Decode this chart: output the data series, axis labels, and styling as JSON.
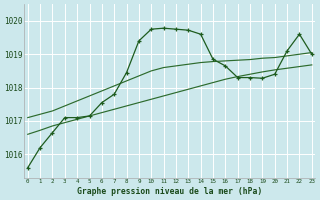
{
  "hours": [
    0,
    1,
    2,
    3,
    4,
    5,
    6,
    7,
    8,
    9,
    10,
    11,
    12,
    13,
    14,
    15,
    16,
    17,
    18,
    19,
    20,
    21,
    22,
    23
  ],
  "pressure_main": [
    1015.6,
    1016.2,
    1016.65,
    1017.1,
    1017.1,
    1017.15,
    1017.55,
    1017.8,
    1018.45,
    1019.4,
    1019.75,
    1019.78,
    1019.75,
    1019.72,
    1019.6,
    1018.85,
    1018.65,
    1018.3,
    1018.3,
    1018.28,
    1018.4,
    1019.1,
    1019.6,
    1019.0
  ],
  "line_upper": [
    1017.1,
    1017.2,
    1017.3,
    1017.45,
    1017.6,
    1017.75,
    1017.9,
    1018.05,
    1018.2,
    1018.35,
    1018.5,
    1018.6,
    1018.65,
    1018.7,
    1018.75,
    1018.78,
    1018.8,
    1018.82,
    1018.84,
    1018.88,
    1018.9,
    1018.95,
    1019.0,
    1019.05
  ],
  "line_lower": [
    1016.6,
    1016.72,
    1016.85,
    1016.95,
    1017.05,
    1017.15,
    1017.25,
    1017.35,
    1017.45,
    1017.55,
    1017.65,
    1017.75,
    1017.85,
    1017.95,
    1018.05,
    1018.15,
    1018.25,
    1018.33,
    1018.4,
    1018.47,
    1018.53,
    1018.58,
    1018.63,
    1018.68
  ],
  "bg_color": "#cce8ec",
  "grid_color": "#ffffff",
  "line_color_main": "#1e5c1e",
  "line_color_aux": "#2d6b2d",
  "ylabel_values": [
    1016,
    1017,
    1018,
    1019,
    1020
  ],
  "ylim": [
    1015.3,
    1020.5
  ],
  "xlim": [
    -0.3,
    23.3
  ],
  "xlabel": "Graphe pression niveau de la mer (hPa)",
  "tick_color": "#1a4a1a"
}
